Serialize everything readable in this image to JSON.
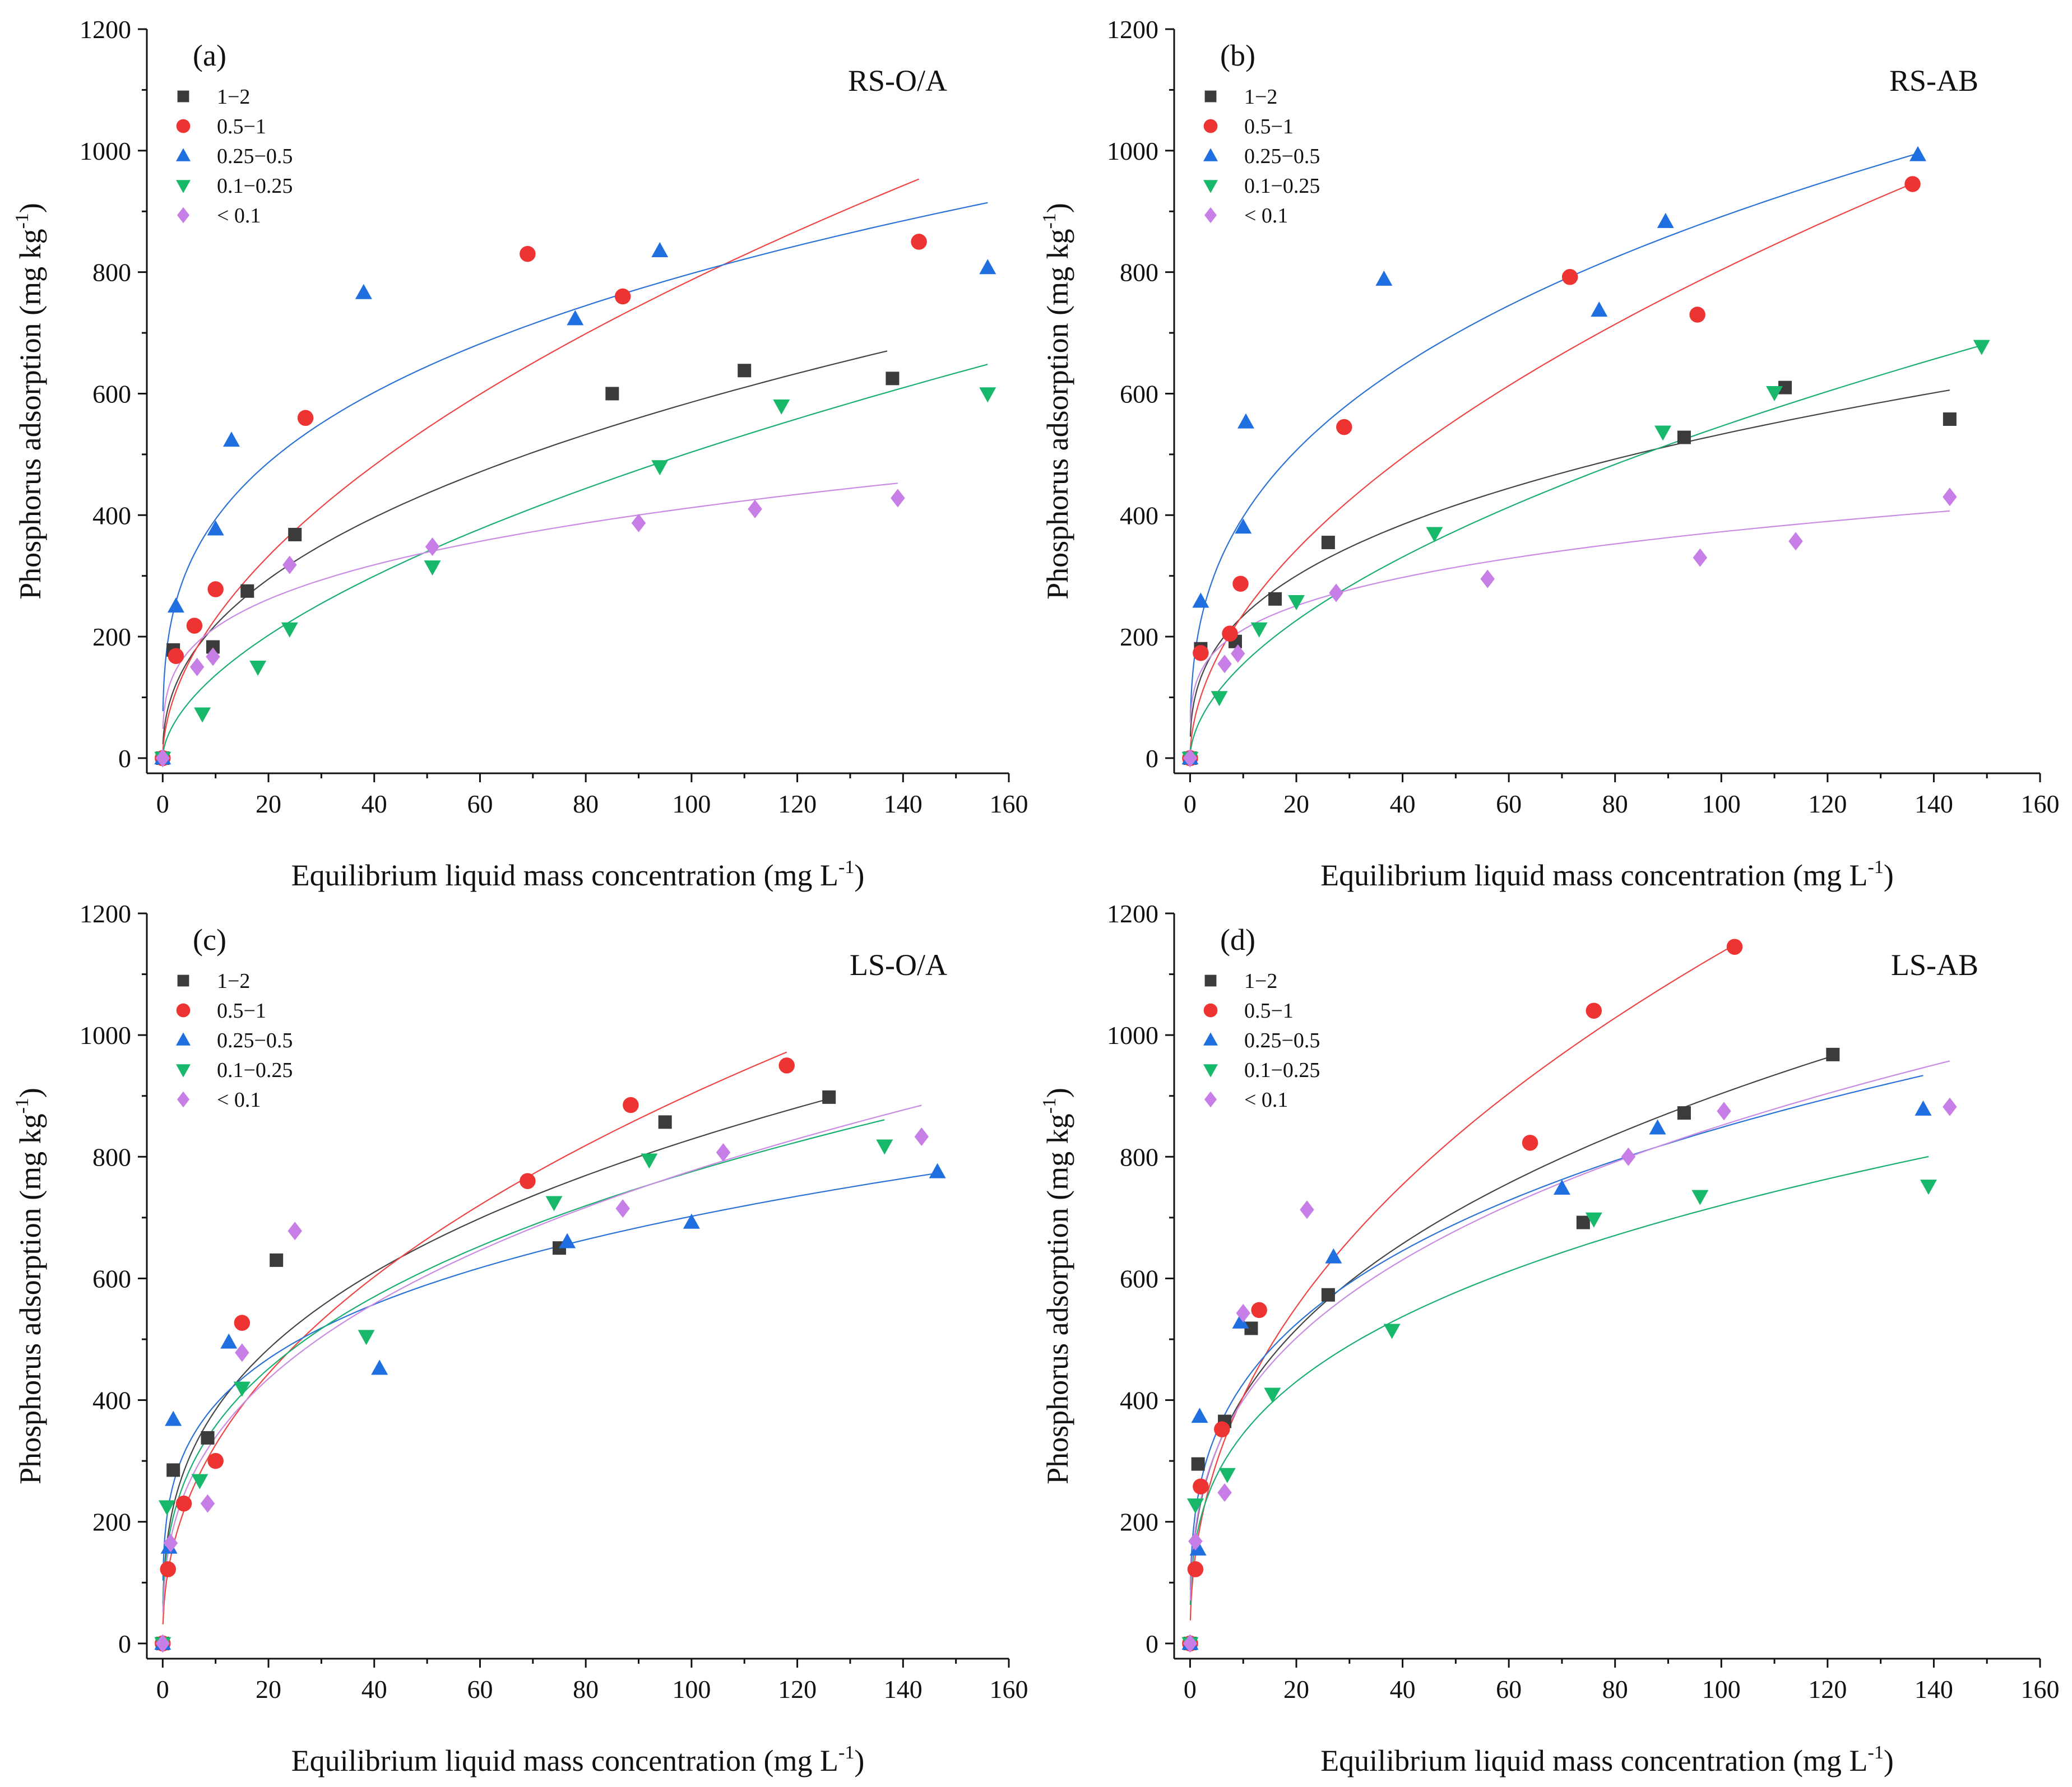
{
  "figure": {
    "x_axis_title": "Equilibrium liquid mass concentration (mg L",
    "x_axis_sup": "-1",
    "x_axis_close": ")",
    "y_axis_title": "Phosphorus adsorption (mg kg",
    "y_axis_sup": "-1",
    "y_axis_close": ")"
  },
  "series_styles": [
    {
      "name": "1−2",
      "marker": "square",
      "color": "#3b3b3b",
      "fit_color": "#444444"
    },
    {
      "name": "0.5−1",
      "marker": "circle",
      "color": "#ee3333",
      "fit_color": "#ee4444"
    },
    {
      "name": "0.25−0.5",
      "marker": "triangle-up",
      "color": "#1f6fe0",
      "fit_color": "#2a72d6"
    },
    {
      "name": "0.1−0.25",
      "marker": "triangle-down",
      "color": "#17b86a",
      "fit_color": "#1aae70"
    },
    {
      "name": "< 0.1",
      "marker": "diamond",
      "color": "#c77ee6",
      "fit_color": "#c98be3"
    }
  ],
  "chart_data": [
    {
      "type": "scatter",
      "panel": "(a)",
      "title": "RS-O/A",
      "xlabel": "Equilibrium liquid mass concentration (mg L-1)",
      "ylabel": "Phosphorus adsorption (mg kg-1)",
      "xlim": [
        -3,
        160
      ],
      "ylim": [
        -25,
        1200
      ],
      "xticks": [
        "0",
        "20",
        "40",
        "60",
        "80",
        "100",
        "120",
        "140",
        "160"
      ],
      "yticks": [
        "0",
        "200",
        "400",
        "600",
        "800",
        "1000",
        "1200"
      ],
      "legend_position": "top-left",
      "series": [
        {
          "name": "1−2",
          "x": [
            0,
            2,
            9.5,
            16,
            25,
            85,
            110,
            138
          ],
          "y": [
            0,
            178,
            183,
            275,
            368,
            600,
            638,
            625
          ],
          "fit": {
            "k": 82,
            "n": 0.427,
            "xmax": 137
          }
        },
        {
          "name": "0.5−1",
          "x": [
            0,
            2.5,
            6,
            10,
            27,
            69,
            87,
            143
          ],
          "y": [
            0,
            168,
            218,
            278,
            560,
            830,
            760,
            850
          ],
          "fit": {
            "k": 67,
            "n": 0.535,
            "xmax": 143
          }
        },
        {
          "name": "0.25−0.5",
          "x": [
            0,
            2.5,
            10,
            13,
            38,
            78,
            94,
            156
          ],
          "y": [
            0,
            250,
            377,
            523,
            766,
            723,
            835,
            807
          ],
          "fit": {
            "k": 194,
            "n": 0.307,
            "xmax": 156
          }
        },
        {
          "name": "0.1−0.25",
          "x": [
            0,
            7.5,
            18,
            24,
            51,
            94,
            117,
            156
          ],
          "y": [
            0,
            73,
            150,
            213,
            315,
            480,
            580,
            600
          ],
          "fit": {
            "k": 37,
            "n": 0.567,
            "xmax": 156
          }
        },
        {
          "name": "< 0.1",
          "x": [
            0,
            6.5,
            9.5,
            24,
            51,
            90,
            112,
            139
          ],
          "y": [
            0,
            150,
            167,
            318,
            348,
            387,
            410,
            428
          ],
          "fit": {
            "k": 112,
            "n": 0.283,
            "xmax": 139
          }
        }
      ]
    },
    {
      "type": "scatter",
      "panel": "(b)",
      "title": "RS-AB",
      "xlabel": "Equilibrium liquid mass concentration (mg L-1)",
      "ylabel": "Phosphorus adsorption (mg kg-1)",
      "xlim": [
        -3,
        160
      ],
      "ylim": [
        -25,
        1200
      ],
      "xticks": [
        "0",
        "20",
        "40",
        "60",
        "80",
        "100",
        "120",
        "140",
        "160"
      ],
      "yticks": [
        "0",
        "200",
        "400",
        "600",
        "800",
        "1000",
        "1200"
      ],
      "legend_position": "top-left",
      "series": [
        {
          "name": "1−2",
          "x": [
            0,
            2,
            8.5,
            16,
            26,
            93,
            112,
            143
          ],
          "y": [
            0,
            180,
            192,
            262,
            355,
            528,
            610,
            558
          ],
          "fit": {
            "k": 103,
            "n": 0.357,
            "xmax": 143
          }
        },
        {
          "name": "0.5−1",
          "x": [
            0,
            2,
            7.5,
            9.5,
            29,
            71.5,
            95.5,
            136
          ],
          "y": [
            0,
            173,
            205,
            287,
            545,
            792,
            730,
            945
          ],
          "fit": {
            "k": 70,
            "n": 0.53,
            "xmax": 136
          }
        },
        {
          "name": "0.25−0.5",
          "x": [
            0,
            2,
            10,
            10.5,
            36.5,
            77,
            89.5,
            137
          ],
          "y": [
            0,
            258,
            380,
            553,
            788,
            737,
            883,
            993
          ],
          "fit": {
            "k": 177,
            "n": 0.351,
            "xmax": 137
          }
        },
        {
          "name": "0.1−0.25",
          "x": [
            0,
            5.5,
            13,
            20,
            46,
            89,
            110,
            149
          ],
          "y": [
            0,
            100,
            213,
            258,
            370,
            537,
            602,
            678
          ],
          "fit": {
            "k": 44,
            "n": 0.547,
            "xmax": 149
          }
        },
        {
          "name": "< 0.1",
          "x": [
            0,
            6.5,
            9,
            27.5,
            56,
            96,
            114,
            143
          ],
          "y": [
            0,
            155,
            172,
            272,
            295,
            330,
            357,
            430
          ],
          "fit": {
            "k": 120,
            "n": 0.246,
            "xmax": 143
          }
        }
      ]
    },
    {
      "type": "scatter",
      "panel": "(c)",
      "title": "LS-O/A",
      "xlabel": "Equilibrium liquid mass concentration (mg L-1)",
      "ylabel": "Phosphorus adsorption (mg kg-1)",
      "xlim": [
        -3,
        160
      ],
      "ylim": [
        -25,
        1200
      ],
      "xticks": [
        "0",
        "20",
        "40",
        "60",
        "80",
        "100",
        "120",
        "140",
        "160"
      ],
      "yticks": [
        "0",
        "200",
        "400",
        "600",
        "800",
        "1000",
        "1200"
      ],
      "legend_position": "top-left",
      "series": [
        {
          "name": "1−2",
          "x": [
            0,
            2,
            8.5,
            21.5,
            75,
            95,
            126
          ],
          "y": [
            0,
            285,
            338,
            630,
            650,
            857,
            898
          ],
          "fit": {
            "k": 178,
            "n": 0.334,
            "xmax": 126
          }
        },
        {
          "name": "0.5−1",
          "x": [
            0,
            1,
            4,
            10,
            15,
            69,
            88.5,
            118
          ],
          "y": [
            0,
            122,
            230,
            300,
            527,
            760,
            885,
            950
          ],
          "fit": {
            "k": 118,
            "n": 0.442,
            "xmax": 118
          }
        },
        {
          "name": "0.25−0.5",
          "x": [
            0,
            1.2,
            2,
            12.5,
            41,
            76.5,
            100,
            146.5
          ],
          "y": [
            0,
            158,
            368,
            495,
            452,
            660,
            692,
            775
          ],
          "fit": {
            "k": 220,
            "n": 0.252,
            "xmax": 146.5
          }
        },
        {
          "name": "0.1−0.25",
          "x": [
            0,
            0.8,
            7,
            15,
            38.5,
            74,
            92,
            136.5
          ],
          "y": [
            0,
            225,
            268,
            420,
            505,
            725,
            795,
            818
          ],
          "fit": {
            "k": 165,
            "n": 0.336,
            "xmax": 136.5
          }
        },
        {
          "name": "< 0.1",
          "x": [
            0,
            1.5,
            8.5,
            15,
            25,
            87,
            106,
            143.5
          ],
          "y": [
            0,
            165,
            230,
            478,
            678,
            715,
            807,
            833
          ],
          "fit": {
            "k": 148,
            "n": 0.36,
            "xmax": 143.5
          }
        }
      ]
    },
    {
      "type": "scatter",
      "panel": "(d)",
      "title": "LS-AB",
      "xlabel": "Equilibrium liquid mass concentration (mg L-1)",
      "ylabel": "Phosphorus adsorption (mg kg-1)",
      "xlim": [
        -3,
        160
      ],
      "ylim": [
        -25,
        1200
      ],
      "xticks": [
        "0",
        "20",
        "40",
        "60",
        "80",
        "100",
        "120",
        "140",
        "160"
      ],
      "yticks": [
        "0",
        "200",
        "400",
        "600",
        "800",
        "1000",
        "1200"
      ],
      "legend_position": "top-left",
      "series": [
        {
          "name": "1−2",
          "x": [
            0,
            1.5,
            6.5,
            11.5,
            26,
            74,
            93,
            121
          ],
          "y": [
            0,
            295,
            365,
            518,
            573,
            692,
            872,
            968
          ],
          "fit": {
            "k": 182,
            "n": 0.348,
            "xmax": 121
          }
        },
        {
          "name": "0.5−1",
          "x": [
            0,
            1,
            2,
            6,
            13,
            64,
            76,
            102.5
          ],
          "y": [
            0,
            122,
            258,
            352,
            548,
            823,
            1040,
            1145
          ],
          "fit": {
            "k": 145,
            "n": 0.447,
            "xmax": 102.5
          }
        },
        {
          "name": "0.25−0.5",
          "x": [
            0,
            1.5,
            1.8,
            9.5,
            27,
            70,
            88,
            138
          ],
          "y": [
            0,
            155,
            373,
            528,
            635,
            748,
            847,
            878
          ],
          "fit": {
            "k": 215,
            "n": 0.298,
            "xmax": 138
          }
        },
        {
          "name": "0.1−0.25",
          "x": [
            0,
            1,
            7,
            15.5,
            38,
            76,
            96,
            139
          ],
          "y": [
            0,
            228,
            278,
            410,
            515,
            698,
            735,
            752
          ],
          "fit": {
            "k": 165,
            "n": 0.32,
            "xmax": 139
          }
        },
        {
          "name": "< 0.1",
          "x": [
            0,
            1,
            6.5,
            10,
            22,
            82.5,
            100.5,
            143
          ],
          "y": [
            0,
            168,
            248,
            543,
            713,
            800,
            875,
            882
          ],
          "fit": {
            "k": 188,
            "n": 0.328,
            "xmax": 143
          }
        }
      ]
    }
  ]
}
